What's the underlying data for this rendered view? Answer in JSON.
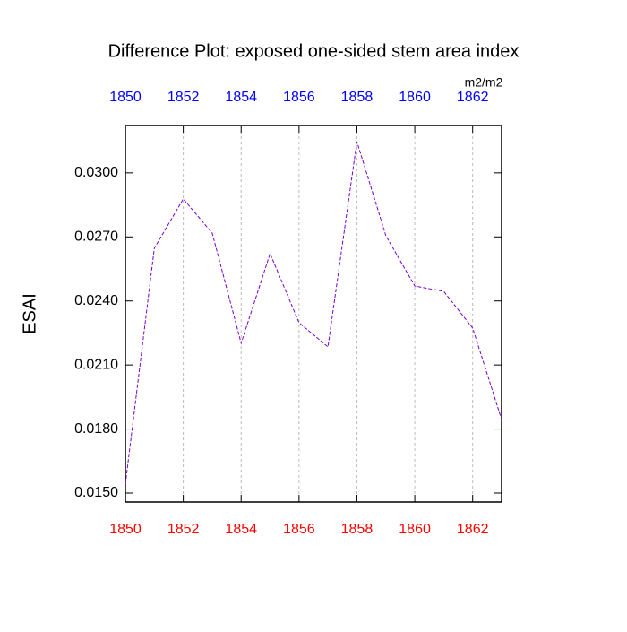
{
  "chart_data": {
    "type": "line",
    "title": "Difference Plot: exposed one-sided stem area index",
    "ylabel": "ESAI",
    "top_axis_label": "m2/m2",
    "x": [
      1850,
      1851,
      1852,
      1853,
      1854,
      1855,
      1856,
      1857,
      1858,
      1859,
      1860,
      1861,
      1862,
      1863
    ],
    "series": [
      {
        "name": null,
        "color": "#7a00c8",
        "values": [
          0.01542,
          0.02647,
          0.02878,
          0.02718,
          0.02202,
          0.02622,
          0.02298,
          0.02185,
          0.03147,
          0.02706,
          0.0247,
          0.02445,
          0.02273,
          0.01845
        ]
      }
    ],
    "xlim": [
      1850,
      1863
    ],
    "xticks": [
      1850,
      1852,
      1854,
      1856,
      1858,
      1860,
      1862
    ],
    "ylim": [
      0.01458,
      0.03222
    ],
    "yticks": [
      {
        "value": 0.015,
        "label": "0.0150"
      },
      {
        "value": 0.018,
        "label": "0.0180"
      },
      {
        "value": 0.021,
        "label": "0.0210"
      },
      {
        "value": 0.024,
        "label": "0.0240"
      },
      {
        "value": 0.027,
        "label": "0.0270"
      },
      {
        "value": 0.03,
        "label": "0.0300"
      }
    ],
    "bottom_axis_color": "red",
    "top_axis_color": "blue",
    "grid": true
  }
}
